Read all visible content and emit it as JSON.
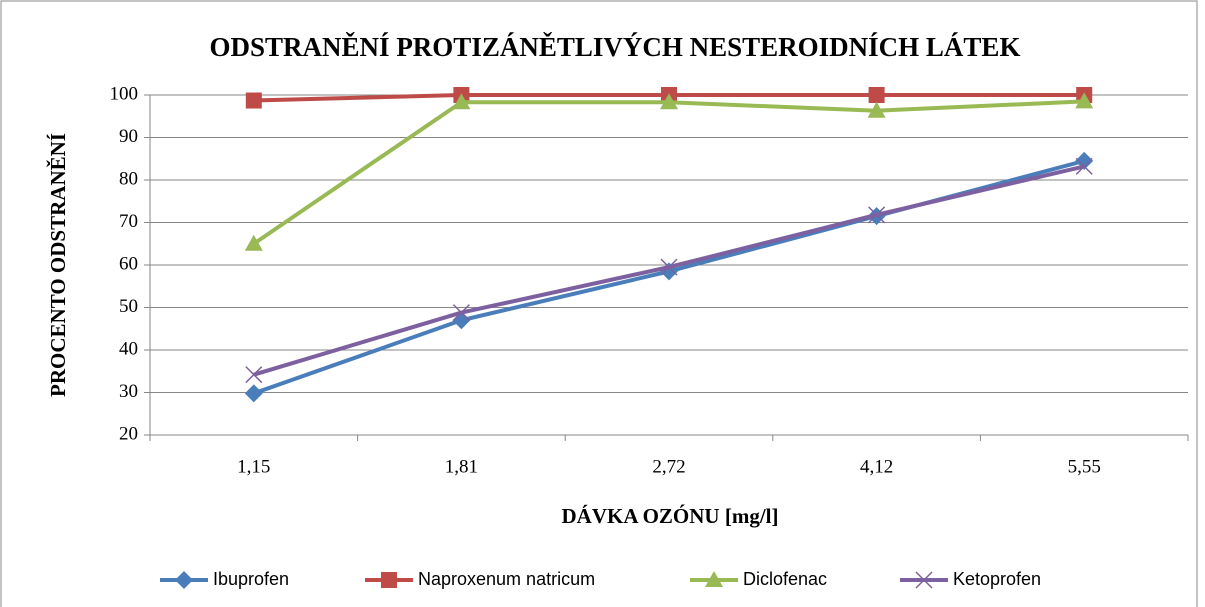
{
  "chart_data": {
    "type": "line",
    "title": "ODSTRANĚNÍ PROTIZÁNĚTLIVÝCH NESTEROIDNÍCH LÁTEK",
    "x_label": "DÁVKA OZÓNU [mg/l]",
    "y_label": "PROCENTO ODSTRANĚNÍ",
    "categories": [
      "1,15",
      "1,81",
      "2,72",
      "4,12",
      "5,55"
    ],
    "series": [
      {
        "name": "Ibuprofen",
        "color": "#4a7ebb",
        "marker": "diamond",
        "values": [
          29.8,
          47,
          58.5,
          71.5,
          84.5
        ]
      },
      {
        "name": "Naproxenum natricum",
        "color": "#be4b48",
        "marker": "square",
        "values": [
          98.7,
          100,
          100,
          100,
          100
        ]
      },
      {
        "name": "Diclofenac",
        "color": "#98b954",
        "marker": "triangle",
        "values": [
          65,
          98.3,
          98.3,
          96.3,
          98.5
        ]
      },
      {
        "name": "Ketoprofen",
        "color": "#7d60a0",
        "marker": "x",
        "values": [
          34.2,
          48.8,
          59.5,
          71.8,
          83.2
        ]
      }
    ],
    "ylim": [
      20,
      100
    ],
    "yticks": [
      20,
      30,
      40,
      50,
      60,
      70,
      80,
      90,
      100
    ],
    "grid": true,
    "legend": "bottom"
  }
}
